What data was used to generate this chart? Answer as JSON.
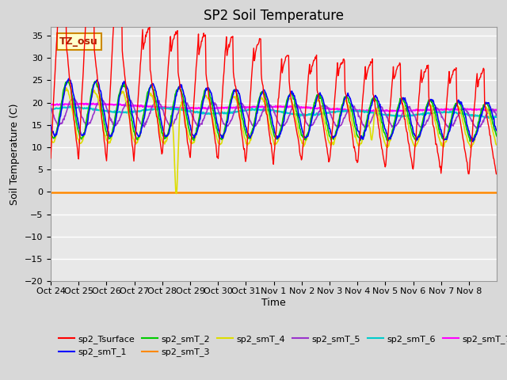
{
  "title": "SP2 Soil Temperature",
  "ylabel": "Soil Temperature (C)",
  "xlabel": "Time",
  "annotation": "TZ_osu",
  "ylim": [
    -20,
    37
  ],
  "yticks": [
    -20,
    -15,
    -10,
    -5,
    0,
    5,
    10,
    15,
    20,
    25,
    30,
    35
  ],
  "x_labels": [
    "Oct 24",
    "Oct 25",
    "Oct 26",
    "Oct 27",
    "Oct 28",
    "Oct 29",
    "Oct 30",
    "Oct 31",
    "Nov 1",
    "Nov 2",
    "Nov 3",
    "Nov 4",
    "Nov 5",
    "Nov 6",
    "Nov 7",
    "Nov 8"
  ],
  "n_days": 16,
  "colors": {
    "sp2_Tsurface": "#ff0000",
    "sp2_smT_1": "#0000ff",
    "sp2_smT_2": "#00cc00",
    "sp2_smT_3": "#ff8800",
    "sp2_smT_4": "#dddd00",
    "sp2_smT_5": "#9933cc",
    "sp2_smT_6": "#00cccc",
    "sp2_smT_7": "#ff00ff"
  },
  "background_color": "#d8d8d8",
  "plot_bg_color": "#e8e8e8",
  "grid_color": "#ffffff",
  "title_fontsize": 12,
  "axis_fontsize": 8,
  "label_fontsize": 9
}
